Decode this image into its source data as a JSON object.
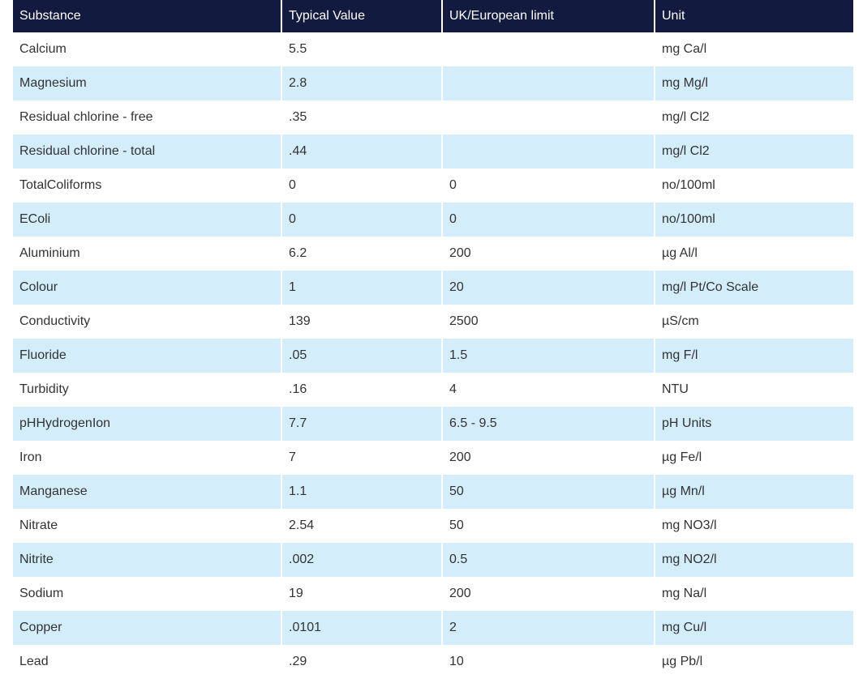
{
  "table": {
    "headers": [
      "Substance",
      "Typical Value",
      "UK/European limit",
      "Unit"
    ],
    "rows": [
      [
        "Calcium",
        "5.5",
        "",
        "mg Ca/l"
      ],
      [
        "Magnesium",
        "2.8",
        "",
        "mg Mg/l"
      ],
      [
        "Residual chlorine - free",
        ".35",
        "",
        "mg/l Cl2"
      ],
      [
        "Residual chlorine - total",
        ".44",
        "",
        "mg/l Cl2"
      ],
      [
        "TotalColiforms",
        "0",
        "0",
        "no/100ml"
      ],
      [
        "EColi",
        "0",
        "0",
        "no/100ml"
      ],
      [
        "Aluminium",
        "6.2",
        "200",
        "µg Al/l"
      ],
      [
        "Colour",
        "1",
        "20",
        "mg/l Pt/Co Scale"
      ],
      [
        "Conductivity",
        "139",
        "2500",
        "µS/cm"
      ],
      [
        "Fluoride",
        ".05",
        "1.5",
        "mg F/l"
      ],
      [
        "Turbidity",
        ".16",
        "4",
        "NTU"
      ],
      [
        "pHHydrogenIon",
        "7.7",
        "6.5 - 9.5",
        "pH Units"
      ],
      [
        "Iron",
        "7",
        "200",
        "µg Fe/l"
      ],
      [
        "Manganese",
        "1.1",
        "50",
        "µg Mn/l"
      ],
      [
        "Nitrate",
        "2.54",
        "50",
        "mg NO3/l"
      ],
      [
        "Nitrite",
        ".002",
        "0.5",
        "mg NO2/l"
      ],
      [
        "Sodium",
        "19",
        "200",
        "mg Na/l"
      ],
      [
        "Copper",
        ".0101",
        "2",
        "mg Cu/l"
      ],
      [
        "Lead",
        ".29",
        "10",
        "µg Pb/l"
      ]
    ]
  },
  "colors": {
    "header_bg": "#131a40",
    "header_text": "#ffffff",
    "stripe_bg": "#d3edfb",
    "row_bg": "#ffffff",
    "text": "#333333"
  }
}
